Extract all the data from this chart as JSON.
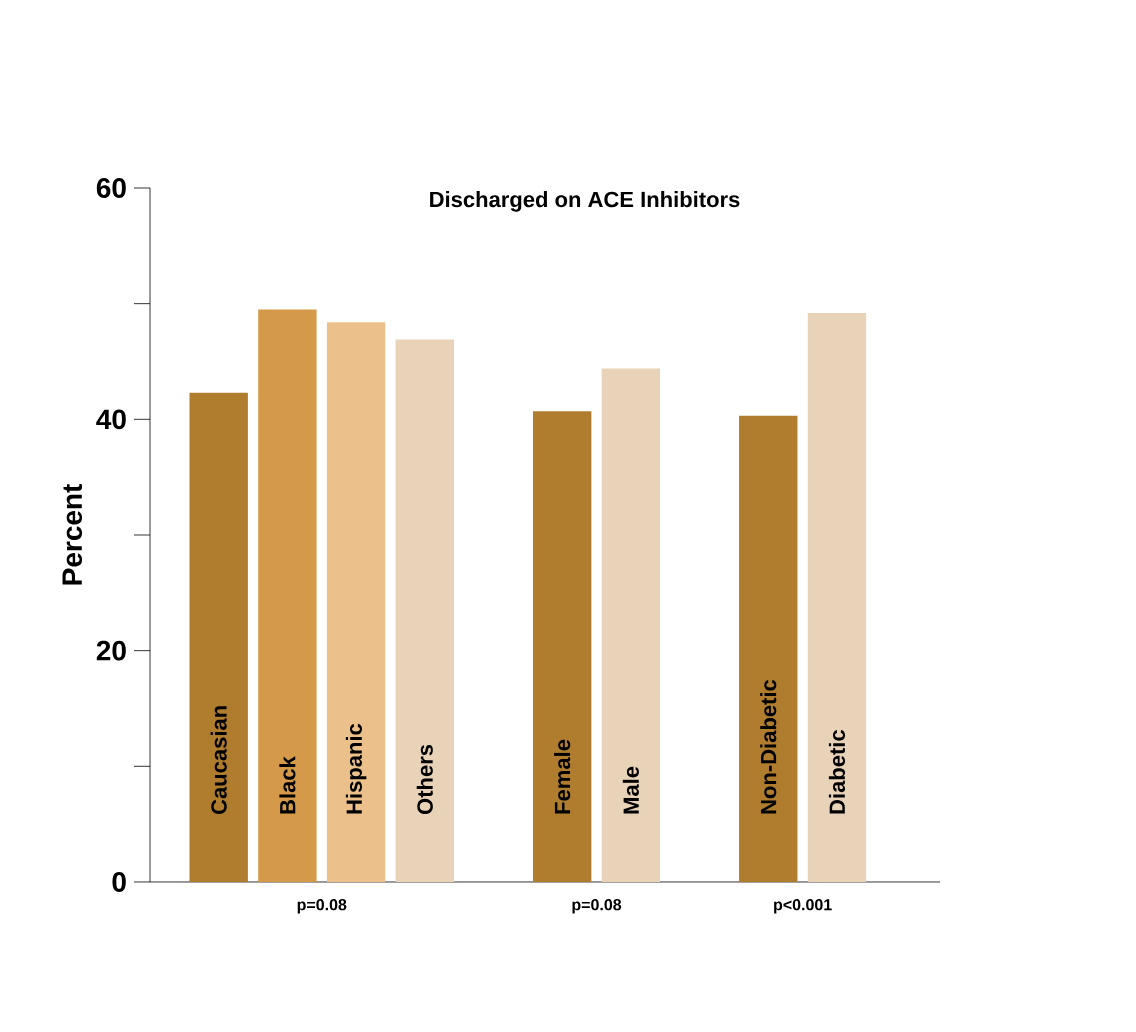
{
  "chart_data": {
    "type": "bar",
    "title": "Discharged on ACE Inhibitors",
    "ylabel": "Percent",
    "categories": [
      "Caucasian",
      "Black",
      "Hispanic",
      "Others",
      null,
      "Female",
      "Male",
      null,
      "Non-Diabetic",
      "Diabetic"
    ],
    "values": [
      42.3,
      49.5,
      48.4,
      46.9,
      null,
      40.7,
      44.4,
      null,
      40.3,
      49.2
    ],
    "colors": [
      "#b07d2e",
      "#d49a4a",
      "#ebc08a",
      "#e8d3b8",
      null,
      "#b07d2e",
      "#e8d3b8",
      null,
      "#b07d2e",
      "#e8d3b8"
    ],
    "ylim": [
      0,
      60
    ],
    "yticks": [
      0,
      {
        "value": 10,
        "label": null
      },
      20,
      {
        "value": 30,
        "label": null
      },
      40,
      {
        "value": 50,
        "label": null
      },
      60
    ],
    "annotations": [
      "p=0.08",
      "p=0.08",
      "p<0.001"
    ]
  }
}
